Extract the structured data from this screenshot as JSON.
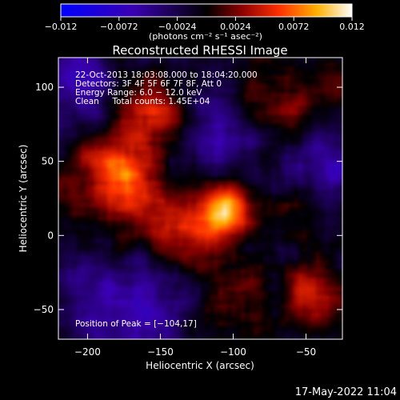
{
  "chart_data": {
    "type": "heatmap",
    "title": "Reconstructed RHESSI Image",
    "xlabel": "Heliocentric X (arcsec)",
    "ylabel": "Heliocentric Y (arcsec)",
    "xlim": [
      -220,
      -25
    ],
    "ylim": [
      -70,
      120
    ],
    "xticks": [
      -200,
      -150,
      -100,
      -50
    ],
    "yticks": [
      -50,
      0,
      50,
      100
    ],
    "xtick_labels": [
      "−200",
      "−150",
      "−100",
      "−50"
    ],
    "ytick_labels": [
      "−50",
      "0",
      "50",
      "100"
    ],
    "colorbar": {
      "min": -0.012,
      "max": 0.012,
      "ticks": [
        -0.012,
        -0.0072,
        -0.0024,
        0.0024,
        0.0072,
        0.012
      ],
      "tick_labels": [
        "−0.012",
        "−0.0072",
        "−0.0024",
        "0.0024",
        "0.0072",
        "0.012"
      ],
      "unit_label": "(photons cm⁻² s⁻¹ asec⁻²)"
    },
    "annotations": [
      "22-Oct-2013 18:03:08.000 to 18:04:20.000",
      "Detectors: 3F 4F 5F 6F 7F 8F, Att 0",
      "Energy Range: 6.0 − 12.0 keV",
      "Clean     Total counts: 1.45E+04"
    ],
    "peak_label": "Position of Peak = [−104,17]",
    "peak": {
      "x": -104,
      "y": 17,
      "value": 0.012
    },
    "sources": [
      {
        "x": -104,
        "y": 17,
        "value": 0.0115
      },
      {
        "x": -155,
        "y": 85,
        "value": 0.0065
      },
      {
        "x": -168,
        "y": 28,
        "value": 0.0058
      },
      {
        "x": -175,
        "y": 55,
        "value": 0.0045
      },
      {
        "x": -200,
        "y": 40,
        "value": 0.0035
      },
      {
        "x": -125,
        "y": 2,
        "value": 0.0045
      },
      {
        "x": -70,
        "y": 95,
        "value": 0.0035
      },
      {
        "x": -45,
        "y": -40,
        "value": 0.0045
      },
      {
        "x": -100,
        "y": -45,
        "value": 0.0032
      },
      {
        "x": -140,
        "y": -5,
        "value": 0.003
      },
      {
        "x": -60,
        "y": 15,
        "value": 0.0025
      },
      {
        "x": -35,
        "y": 100,
        "value": 0.002
      },
      {
        "x": -165,
        "y": -60,
        "value": -0.0035
      },
      {
        "x": -205,
        "y": 100,
        "value": -0.0045
      },
      {
        "x": -115,
        "y": 70,
        "value": -0.004
      },
      {
        "x": -40,
        "y": 45,
        "value": -0.004
      },
      {
        "x": -195,
        "y": -35,
        "value": -0.003
      },
      {
        "x": -150,
        "y": -30,
        "value": -0.003
      }
    ]
  },
  "timestamp": "17-May-2022 11:04"
}
